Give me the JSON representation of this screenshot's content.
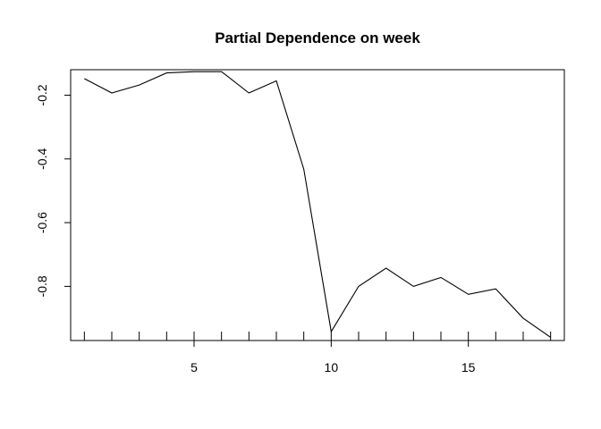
{
  "chart_data": {
    "type": "line",
    "title": "Partial Dependence on week",
    "xlabel": "",
    "ylabel": "",
    "x": [
      1,
      2,
      3,
      4,
      5,
      6,
      7,
      8,
      9,
      10,
      11,
      12,
      13,
      14,
      15,
      16,
      17,
      18
    ],
    "series": [
      {
        "values": [
          -0.148,
          -0.193,
          -0.168,
          -0.13,
          -0.126,
          -0.126,
          -0.193,
          -0.155,
          -0.432,
          -0.942,
          -0.8,
          -0.743,
          -0.8,
          -0.772,
          -0.825,
          -0.808,
          -0.9,
          -0.96
        ]
      }
    ],
    "xlim": [
      0.5,
      18.5
    ],
    "ylim": [
      -0.97,
      -0.12
    ],
    "x_ticks": [
      5,
      10,
      15
    ],
    "x_tick_labels": [
      "5",
      "10",
      "15"
    ],
    "y_ticks": [
      -0.2,
      -0.4,
      -0.6,
      -0.8
    ],
    "y_tick_labels": [
      "-0.2",
      "-0.4",
      "-0.6",
      "-0.8"
    ],
    "rug": [
      1,
      2,
      3,
      4,
      5,
      6,
      7,
      8,
      9,
      10,
      11,
      12,
      13,
      14,
      15,
      16,
      17,
      18
    ],
    "grid": false,
    "line_color": "#000000"
  }
}
